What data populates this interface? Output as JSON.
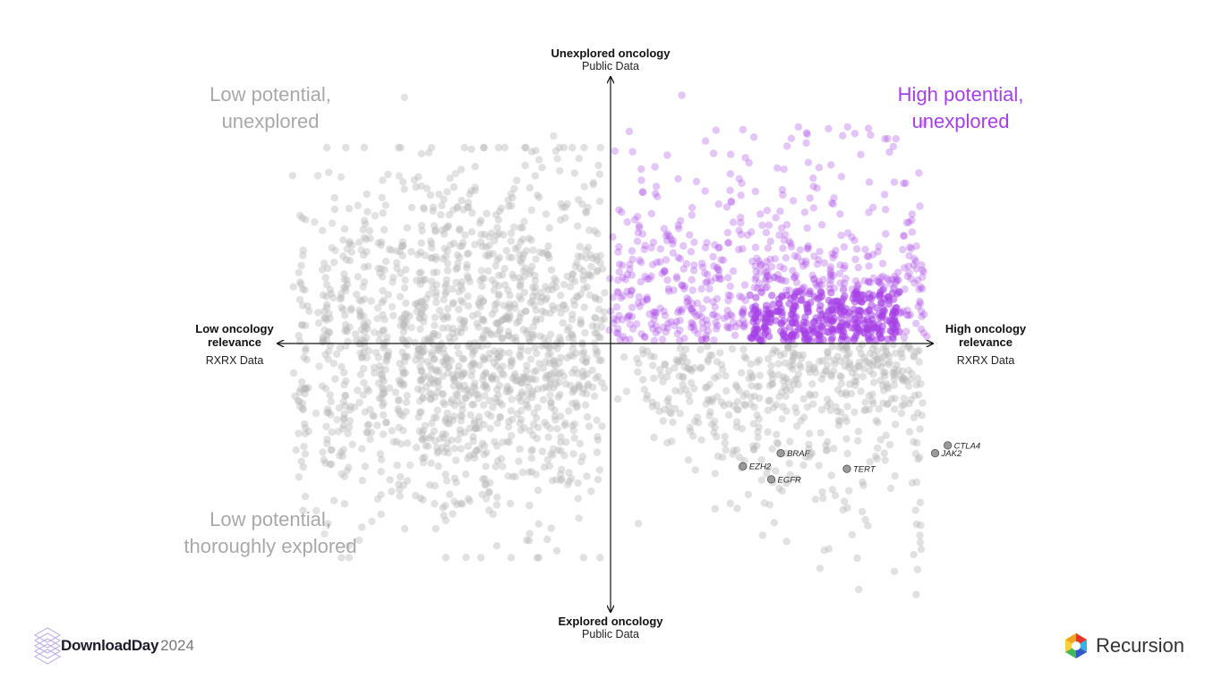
{
  "labels": {
    "top_title": "Unexplored oncology",
    "top_sub": "Public Data",
    "bottom_title": "Explored oncology",
    "bottom_sub": "Public Data",
    "left_title_1": "Low oncology",
    "left_title_2": "relevance",
    "left_sub": "RXRX Data",
    "right_title_1": "High oncology",
    "right_title_2": "relevance",
    "right_sub": "RXRX Data"
  },
  "quadrants": {
    "top_left_1": "Low potential,",
    "top_left_2": "unexplored",
    "top_right_1": "High potential,",
    "top_right_2": "unexplored",
    "bottom_left_1": "Low potential,",
    "bottom_left_2": "thoroughly explored"
  },
  "branding": {
    "left_name": "DownloadDay",
    "left_year": "2024",
    "right_name": "Recursion"
  },
  "chart_data": {
    "type": "scatter",
    "x_axis": {
      "left_label": "Low oncology relevance",
      "right_label": "High oncology relevance",
      "source": "RXRX Data"
    },
    "y_axis": {
      "top_label": "Unexplored oncology",
      "bottom_label": "Explored oncology",
      "source": "Public Data"
    },
    "xlim": [
      -1,
      1
    ],
    "ylim": [
      -1,
      1
    ],
    "colors": {
      "gray": "#b8b8b8",
      "purple": "#a640e6",
      "highlight": "#9a9a9a",
      "axis": "#111111"
    },
    "highlighted_genes": [
      {
        "name": "BRAF",
        "x": 0.54,
        "y": -0.42
      },
      {
        "name": "EZH2",
        "x": 0.42,
        "y": -0.47
      },
      {
        "name": "EGFR",
        "x": 0.51,
        "y": -0.52
      },
      {
        "name": "TERT",
        "x": 0.75,
        "y": -0.48
      },
      {
        "name": "CTLA4",
        "x": 1.07,
        "y": -0.39
      },
      {
        "name": "JAK2",
        "x": 1.03,
        "y": -0.42
      }
    ]
  }
}
